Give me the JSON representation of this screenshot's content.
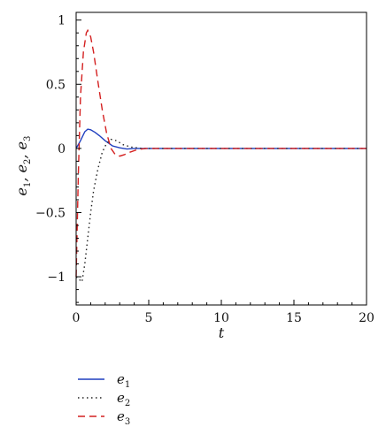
{
  "chart_data": {
    "type": "line",
    "title": "",
    "xlabel": "t",
    "ylabel": {
      "base": "e",
      "subs": [
        "1",
        "2",
        "3"
      ],
      "sep": ", "
    },
    "xlim": [
      0,
      20
    ],
    "ylim": [
      -1.22,
      1.06
    ],
    "xticks": [
      0,
      5,
      10,
      15,
      20
    ],
    "yticks": [
      1,
      0.5,
      0,
      -0.5,
      -1
    ],
    "ytick_labels": [
      "1",
      "0.5",
      "0",
      "−0.5",
      "−1"
    ],
    "grid": false,
    "legend_position": "bottom-left",
    "series": [
      {
        "name": "e1",
        "legend_base": "e",
        "legend_sub": "1",
        "color": "#1f3fbf",
        "style": "solid",
        "x": [
          0,
          0.3,
          0.6,
          0.8,
          1.0,
          1.3,
          1.6,
          2.0,
          2.5,
          3.0,
          3.5,
          4.0,
          4.5,
          5,
          20
        ],
        "y": [
          0,
          0.06,
          0.13,
          0.15,
          0.145,
          0.125,
          0.1,
          0.06,
          0.02,
          0.005,
          -0.005,
          0,
          0,
          0,
          0
        ]
      },
      {
        "name": "e2",
        "legend_base": "e",
        "legend_sub": "2",
        "color": "#222222",
        "style": "dotted",
        "x": [
          0,
          0.2,
          0.4,
          0.6,
          0.8,
          1.0,
          1.2,
          1.5,
          1.8,
          2.1,
          2.4,
          2.8,
          3.2,
          3.8,
          4.5,
          5.5,
          20
        ],
        "y": [
          -1.0,
          -1.02,
          -1.04,
          -0.9,
          -0.7,
          -0.5,
          -0.33,
          -0.16,
          -0.03,
          0.04,
          0.07,
          0.06,
          0.03,
          0.01,
          0,
          0,
          0
        ]
      },
      {
        "name": "e3",
        "legend_base": "e",
        "legend_sub": "3",
        "color": "#d42020",
        "style": "dashed",
        "x": [
          0,
          0.15,
          0.3,
          0.5,
          0.7,
          0.8,
          1.0,
          1.2,
          1.5,
          1.8,
          2.1,
          2.4,
          2.7,
          3.0,
          3.3,
          3.7,
          4.2,
          4.8,
          5.5,
          20
        ],
        "y": [
          -1.0,
          -0.2,
          0.4,
          0.75,
          0.9,
          0.92,
          0.87,
          0.75,
          0.52,
          0.3,
          0.12,
          0.0,
          -0.05,
          -0.06,
          -0.05,
          -0.03,
          -0.01,
          0,
          0,
          0
        ]
      }
    ]
  }
}
